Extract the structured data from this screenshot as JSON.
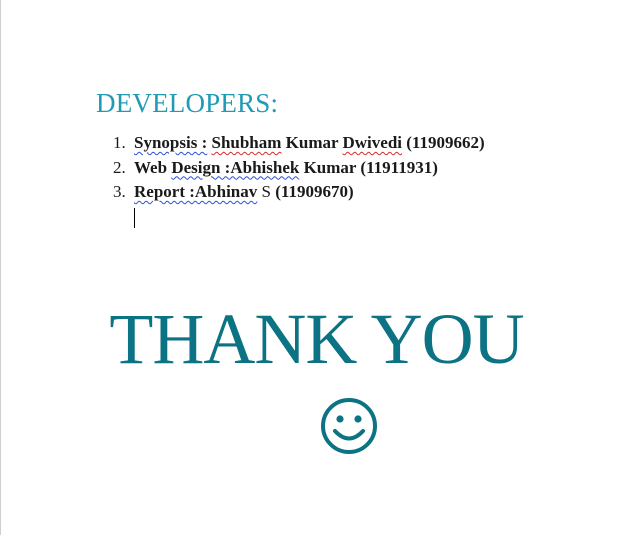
{
  "heading": "DEVELOPERS:",
  "developers": [
    {
      "number": "1.",
      "role": "Synopsis :",
      "name_underlined": "Shubham",
      "name_mid": " Kumar ",
      "name_underlined2": "Dwivedi",
      "id": " (11909662)"
    },
    {
      "number": "2.",
      "role_plain": "Web ",
      "role_underlined": "Design :Abhishek",
      "name": " Kumar (11911931)"
    },
    {
      "number": "3.",
      "role_underlined": "Report :Abhinav",
      "name_initial": " S",
      "id": " (11909670)"
    }
  ],
  "thank_you": "THANK YOU",
  "colors": {
    "heading": "#1f9bb5",
    "thank_you": "#0b7383",
    "spell_blue": "#2b4fd6",
    "spell_red": "#d92b2b"
  },
  "icons": {
    "smiley": "smiley-face-icon"
  }
}
